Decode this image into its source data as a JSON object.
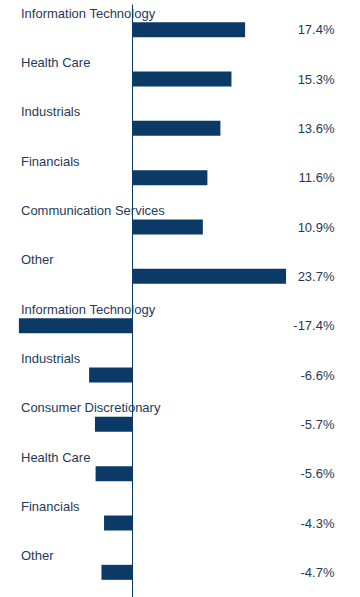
{
  "chart_data": {
    "type": "bar",
    "orientation": "horizontal",
    "categories": [
      "Information Technology",
      "Health Care",
      "Industrials",
      "Financials",
      "Communication Services",
      "Other",
      "Information Technology",
      "Industrials",
      "Consumer Discretionary",
      "Health Care",
      "Financials",
      "Other"
    ],
    "values": [
      17.4,
      15.3,
      13.6,
      11.6,
      10.9,
      23.7,
      -17.4,
      -6.6,
      -5.7,
      -5.6,
      -4.3,
      -4.7
    ],
    "value_labels": [
      "17.4%",
      "15.3%",
      "13.6%",
      "11.6%",
      "10.9%",
      "23.7%",
      "-17.4%",
      "-6.6%",
      "-5.7%",
      "-5.6%",
      "-4.3%",
      "-4.7%"
    ],
    "color": "#0b3a66",
    "xlim": [
      -18,
      25
    ],
    "grid": false,
    "data_labels": true,
    "tick_labels": "y"
  }
}
